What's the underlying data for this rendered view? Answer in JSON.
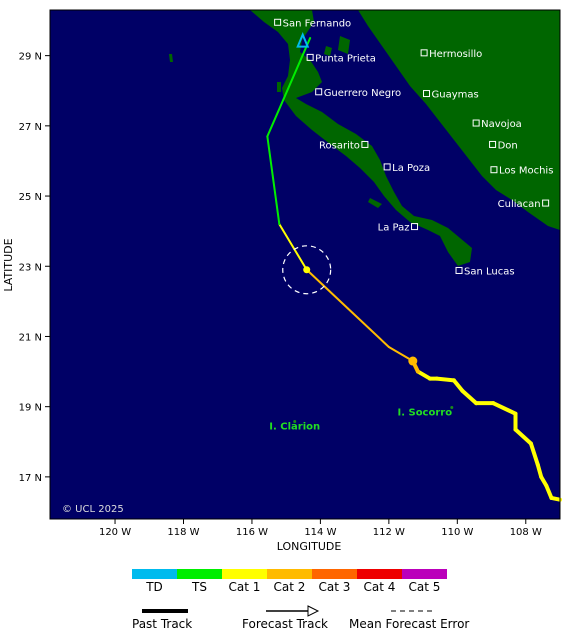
{
  "map": {
    "colors": {
      "ocean": "#000066",
      "land": "#006600",
      "town_label": "#ffffff",
      "island_label": "#22dd22"
    },
    "towns": [
      {
        "name": "San Fernando",
        "lon": -115.25,
        "lat": 29.95
      },
      {
        "name": "Hermosillo",
        "lon": -110.97,
        "lat": 29.08
      },
      {
        "name": "Punta Prieta",
        "lon": -114.3,
        "lat": 28.95
      },
      {
        "name": "Guerrero Negro",
        "lon": -114.05,
        "lat": 27.97
      },
      {
        "name": "Guaymas",
        "lon": -110.9,
        "lat": 27.92
      },
      {
        "name": "Navojoa",
        "lon": -109.45,
        "lat": 27.08
      },
      {
        "name": "Rosarito",
        "lon": -112.7,
        "lat": 26.47
      },
      {
        "name": "Don",
        "lon": -108.97,
        "lat": 26.47
      },
      {
        "name": "La Poza",
        "lon": -112.05,
        "lat": 25.83
      },
      {
        "name": "Los Mochis",
        "lon": -108.93,
        "lat": 25.75
      },
      {
        "name": "Culiacan",
        "lon": -107.42,
        "lat": 24.8
      },
      {
        "name": "La Paz",
        "lon": -111.25,
        "lat": 24.13
      },
      {
        "name": "San Lucas",
        "lon": -109.95,
        "lat": 22.88
      }
    ],
    "islands": [
      {
        "name": "I. Clarion",
        "lon": -114.75,
        "lat": 18.35
      },
      {
        "name": "I. Socorro",
        "lon": -110.95,
        "lat": 18.75
      }
    ],
    "copyright": "© UCL 2025",
    "lat_axis": {
      "label": "LATITUDE",
      "ticks": [
        "29 N",
        "27 N",
        "25 N",
        "23 N",
        "21 N",
        "19 N",
        "17 N"
      ],
      "values": [
        29,
        27,
        25,
        23,
        21,
        19,
        17
      ]
    },
    "lon_axis": {
      "label": "LONGITUDE",
      "ticks": [
        "120 W",
        "118 W",
        "116 W",
        "114 W",
        "112 W",
        "110 W",
        "108 W"
      ],
      "values": [
        -120,
        -118,
        -116,
        -114,
        -112,
        -110,
        -108
      ]
    },
    "extent": {
      "lon_min": -121.9,
      "lon_max": -107.0,
      "lat_min": 15.8,
      "lat_max": 30.3
    },
    "track": {
      "past": [
        {
          "lon": -107.0,
          "lat": 16.35,
          "cat": "TS"
        },
        {
          "lon": -107.25,
          "lat": 16.4,
          "cat": "Cat 1"
        },
        {
          "lon": -107.4,
          "lat": 16.75,
          "cat": "Cat 1"
        },
        {
          "lon": -107.55,
          "lat": 17.0,
          "cat": "Cat 1"
        },
        {
          "lon": -107.65,
          "lat": 17.35,
          "cat": "Cat 1"
        },
        {
          "lon": -107.85,
          "lat": 17.95,
          "cat": "Cat 1"
        },
        {
          "lon": -108.3,
          "lat": 18.35,
          "cat": "Cat 1"
        },
        {
          "lon": -108.3,
          "lat": 18.8,
          "cat": "Cat 1"
        },
        {
          "lon": -108.95,
          "lat": 19.1,
          "cat": "Cat 1"
        },
        {
          "lon": -109.45,
          "lat": 19.1,
          "cat": "Cat 1"
        },
        {
          "lon": -109.85,
          "lat": 19.45,
          "cat": "Cat 1"
        },
        {
          "lon": -110.1,
          "lat": 19.75,
          "cat": "Cat 1"
        },
        {
          "lon": -110.6,
          "lat": 19.8,
          "cat": "Cat 1"
        },
        {
          "lon": -110.8,
          "lat": 19.8,
          "cat": "Cat 1"
        },
        {
          "lon": -111.15,
          "lat": 20.0,
          "cat": "Cat 1"
        },
        {
          "lon": -111.3,
          "lat": 20.3,
          "cat": "Cat 2"
        }
      ],
      "current": {
        "lon": -111.3,
        "lat": 20.3
      },
      "forecast": [
        {
          "lon": -111.3,
          "lat": 20.3,
          "cat": "Cat 2"
        },
        {
          "lon": -112.0,
          "lat": 20.7,
          "cat": "Cat 2"
        },
        {
          "lon": -113.2,
          "lat": 21.8,
          "cat": "Cat 2"
        },
        {
          "lon": -114.4,
          "lat": 22.9,
          "cat": "Cat 2"
        },
        {
          "lon": -115.2,
          "lat": 24.2,
          "cat": "Cat 1"
        },
        {
          "lon": -115.55,
          "lat": 26.7,
          "cat": "TS"
        },
        {
          "lon": -114.3,
          "lat": 29.5,
          "cat": "TS"
        }
      ],
      "forecast_point": {
        "lon": -114.4,
        "lat": 22.9
      },
      "error_circle_radius_deg": 0.7,
      "end_marker": {
        "lon": -114.4,
        "lat": 29.4,
        "cat": "TD"
      }
    }
  },
  "legend": {
    "categories": [
      {
        "label": "TD",
        "color": "#00bbee"
      },
      {
        "label": "TS",
        "color": "#00ee00"
      },
      {
        "label": "Cat 1",
        "color": "#ffff00"
      },
      {
        "label": "Cat 2",
        "color": "#ffbb00"
      },
      {
        "label": "Cat 3",
        "color": "#ff6600"
      },
      {
        "label": "Cat 4",
        "color": "#ee0000"
      },
      {
        "label": "Cat 5",
        "color": "#bb00bb"
      }
    ],
    "past_track": "Past Track",
    "forecast_track": "Forecast Track",
    "error": "Mean Forecast Error"
  }
}
